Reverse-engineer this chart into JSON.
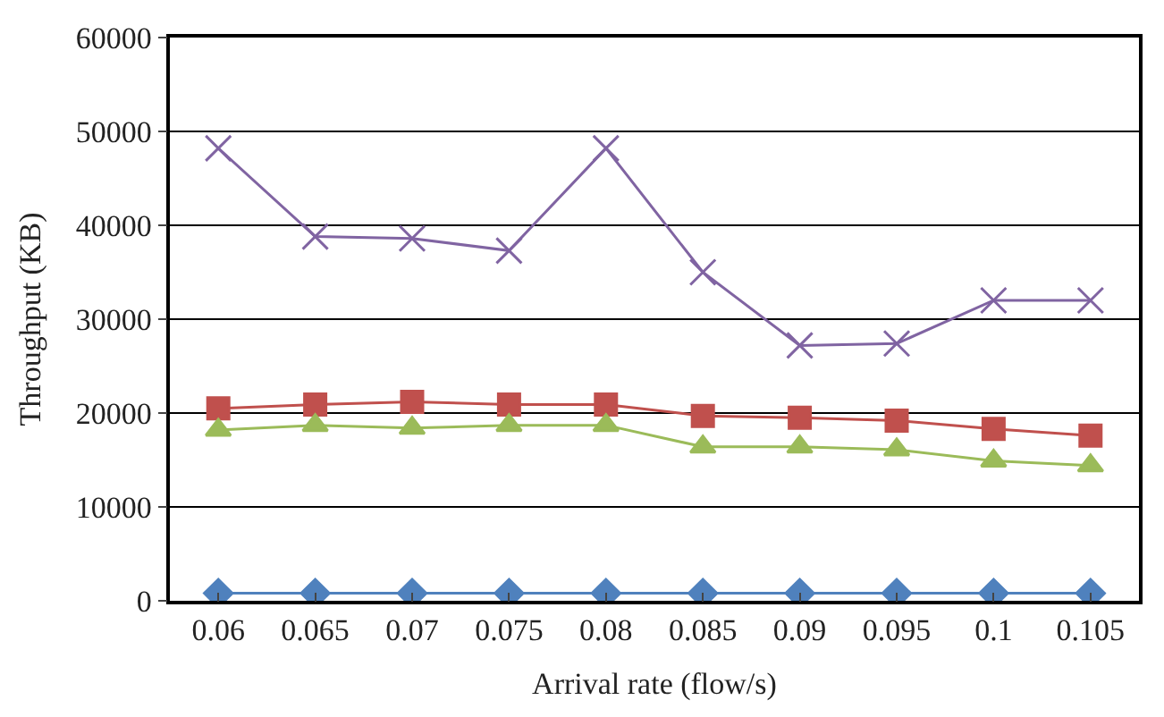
{
  "chart_data": {
    "type": "line",
    "xlabel": "Arrival rate (flow/s)",
    "ylabel": "Throughput (KB)",
    "categories": [
      "0.06",
      "0.065",
      "0.07",
      "0.075",
      "0.08",
      "0.085",
      "0.09",
      "0.095",
      "0.1",
      "0.105"
    ],
    "series": [
      {
        "color": "#4f81bd",
        "marker": "diamond",
        "values": [
          800,
          800,
          800,
          800,
          800,
          800,
          800,
          800,
          800,
          800
        ]
      },
      {
        "color": "#c0504d",
        "marker": "square",
        "values": [
          20500,
          20900,
          21200,
          20900,
          20900,
          19700,
          19500,
          19200,
          18300,
          17600
        ]
      },
      {
        "color": "#9bbb59",
        "marker": "triangle",
        "values": [
          18200,
          18700,
          18400,
          18700,
          18700,
          16400,
          16400,
          16100,
          14900,
          14400
        ]
      },
      {
        "color": "#8064a2",
        "marker": "cross",
        "values": [
          48200,
          38800,
          38600,
          37300,
          48200,
          35000,
          27200,
          27400,
          32000,
          32000
        ]
      }
    ],
    "ylim": [
      0,
      60000
    ],
    "yticks": [
      0,
      10000,
      20000,
      30000,
      40000,
      50000,
      60000
    ],
    "grid": "y"
  }
}
